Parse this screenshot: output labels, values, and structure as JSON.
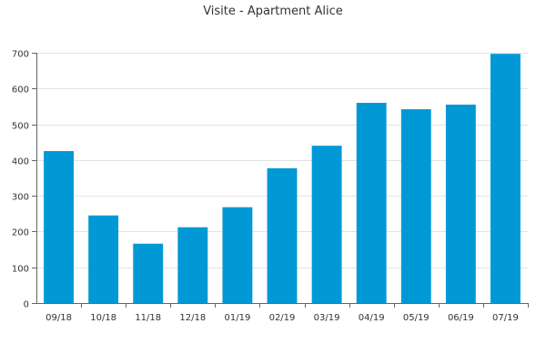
{
  "chart_data": {
    "type": "bar",
    "title": "Visite - Apartment Alice",
    "xlabel": "",
    "ylabel": "",
    "categories": [
      "09/18",
      "10/18",
      "11/18",
      "12/18",
      "01/19",
      "02/19",
      "03/19",
      "04/19",
      "05/19",
      "06/19",
      "07/19"
    ],
    "values": [
      425,
      245,
      166,
      212,
      268,
      377,
      440,
      560,
      542,
      555,
      697
    ],
    "ylim": [
      0,
      700
    ],
    "yticks": [
      0,
      100,
      200,
      300,
      400,
      500,
      600,
      700
    ],
    "grid": true,
    "legend": "none",
    "bar_color": "#0099d5"
  }
}
